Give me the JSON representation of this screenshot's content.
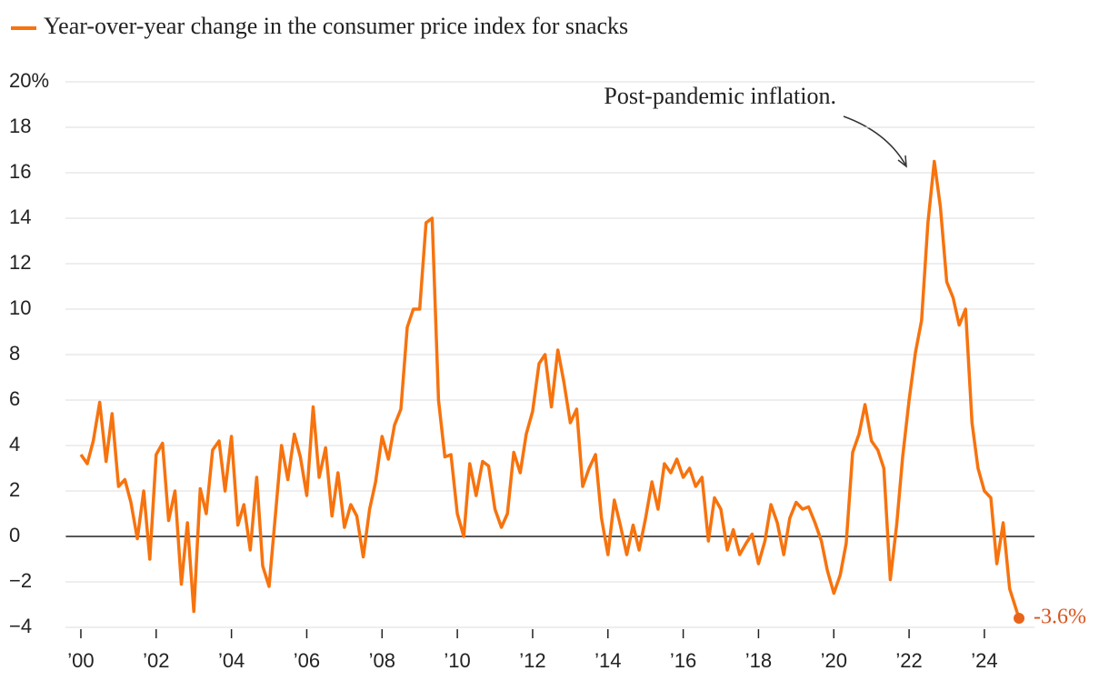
{
  "chart_data": {
    "type": "line",
    "annotation": "Post-pandemic inflation.",
    "x": [
      2000,
      2000.17,
      2000.33,
      2000.5,
      2000.67,
      2000.83,
      2001,
      2001.17,
      2001.33,
      2001.5,
      2001.67,
      2001.83,
      2002,
      2002.17,
      2002.33,
      2002.5,
      2002.67,
      2002.83,
      2003,
      2003.17,
      2003.33,
      2003.5,
      2003.67,
      2003.83,
      2004,
      2004.17,
      2004.33,
      2004.5,
      2004.67,
      2004.83,
      2005,
      2005.17,
      2005.33,
      2005.5,
      2005.67,
      2005.83,
      2006,
      2006.17,
      2006.33,
      2006.5,
      2006.67,
      2006.83,
      2007,
      2007.17,
      2007.33,
      2007.5,
      2007.67,
      2007.83,
      2008,
      2008.17,
      2008.33,
      2008.5,
      2008.67,
      2008.83,
      2009,
      2009.17,
      2009.33,
      2009.5,
      2009.67,
      2009.83,
      2010,
      2010.17,
      2010.33,
      2010.5,
      2010.67,
      2010.83,
      2011,
      2011.17,
      2011.33,
      2011.5,
      2011.67,
      2011.83,
      2012,
      2012.17,
      2012.33,
      2012.5,
      2012.67,
      2012.83,
      2013,
      2013.17,
      2013.33,
      2013.5,
      2013.67,
      2013.83,
      2014,
      2014.17,
      2014.33,
      2014.5,
      2014.67,
      2014.83,
      2015,
      2015.17,
      2015.33,
      2015.5,
      2015.67,
      2015.83,
      2016,
      2016.17,
      2016.33,
      2016.5,
      2016.67,
      2016.83,
      2017,
      2017.17,
      2017.33,
      2017.5,
      2017.67,
      2017.83,
      2018,
      2018.17,
      2018.33,
      2018.5,
      2018.67,
      2018.83,
      2019,
      2019.17,
      2019.33,
      2019.5,
      2019.67,
      2019.83,
      2020,
      2020.17,
      2020.33,
      2020.5,
      2020.67,
      2020.83,
      2021,
      2021.17,
      2021.33,
      2021.5,
      2021.67,
      2021.83,
      2022,
      2022.17,
      2022.33,
      2022.5,
      2022.67,
      2022.83,
      2023,
      2023.17,
      2023.33,
      2023.5,
      2023.67,
      2023.83,
      2024,
      2024.17,
      2024.33,
      2024.5,
      2024.67,
      2024.92
    ],
    "series": [
      {
        "name": "Year-over-year change in the consumer price index for snacks",
        "color": "#f7730e",
        "last_label": "-3.6%",
        "values": [
          3.6,
          3.2,
          4.2,
          5.9,
          3.3,
          5.4,
          2.2,
          2.5,
          1.5,
          -0.1,
          2.0,
          -1.0,
          3.6,
          4.1,
          0.7,
          2.0,
          -2.1,
          0.6,
          -3.3,
          2.1,
          1.0,
          3.8,
          4.2,
          2.0,
          4.4,
          0.5,
          1.4,
          -0.6,
          2.6,
          -1.3,
          -2.2,
          1.0,
          4.0,
          2.5,
          4.5,
          3.5,
          1.8,
          5.7,
          2.6,
          3.9,
          0.9,
          2.8,
          0.4,
          1.4,
          0.9,
          -0.9,
          1.2,
          2.4,
          4.4,
          3.4,
          4.9,
          5.6,
          9.2,
          10.0,
          10.0,
          13.8,
          14.0,
          6.0,
          3.5,
          3.6,
          1.0,
          0.0,
          3.2,
          1.8,
          3.3,
          3.1,
          1.2,
          0.4,
          1.0,
          3.7,
          2.8,
          4.5,
          5.5,
          7.6,
          8.0,
          5.7,
          8.2,
          6.8,
          5.0,
          5.6,
          2.2,
          3.0,
          3.6,
          0.8,
          -0.8,
          1.6,
          0.5,
          -0.8,
          0.5,
          -0.6,
          0.8,
          2.4,
          1.2,
          3.2,
          2.8,
          3.4,
          2.6,
          3.0,
          2.2,
          2.6,
          -0.2,
          1.7,
          1.2,
          -0.6,
          0.3,
          -0.8,
          -0.3,
          0.1,
          -1.2,
          -0.2,
          1.4,
          0.6,
          -0.8,
          0.8,
          1.5,
          1.2,
          1.3,
          0.6,
          -0.2,
          -1.5,
          -2.5,
          -1.7,
          -0.3,
          3.7,
          4.5,
          5.8,
          4.2,
          3.8,
          3.0,
          -1.9,
          0.5,
          3.5,
          6.0,
          8.1,
          9.5,
          13.8,
          16.5,
          14.5,
          11.2,
          10.5,
          9.3,
          10.0,
          5.0,
          3.0,
          2.0,
          1.7,
          -1.2,
          0.6,
          -2.3,
          -3.6
        ]
      }
    ],
    "xlim": [
      1999.6,
      2025.33
    ],
    "xticks": [
      {
        "value": 2000,
        "label": "’00"
      },
      {
        "value": 2002,
        "label": "’02"
      },
      {
        "value": 2004,
        "label": "’04"
      },
      {
        "value": 2006,
        "label": "’06"
      },
      {
        "value": 2008,
        "label": "’08"
      },
      {
        "value": 2010,
        "label": "’10"
      },
      {
        "value": 2012,
        "label": "’12"
      },
      {
        "value": 2014,
        "label": "’14"
      },
      {
        "value": 2016,
        "label": "’16"
      },
      {
        "value": 2018,
        "label": "’18"
      },
      {
        "value": 2020,
        "label": "’20"
      },
      {
        "value": 2022,
        "label": "’22"
      },
      {
        "value": 2024,
        "label": "’24"
      }
    ],
    "ylim": [
      -4,
      20
    ],
    "yticks": [
      {
        "value": -4,
        "label": "−4"
      },
      {
        "value": -2,
        "label": "−2"
      },
      0,
      2,
      4,
      6,
      8,
      10,
      12,
      14,
      16,
      18,
      {
        "value": 20,
        "label": "20%"
      }
    ],
    "grid": true
  }
}
